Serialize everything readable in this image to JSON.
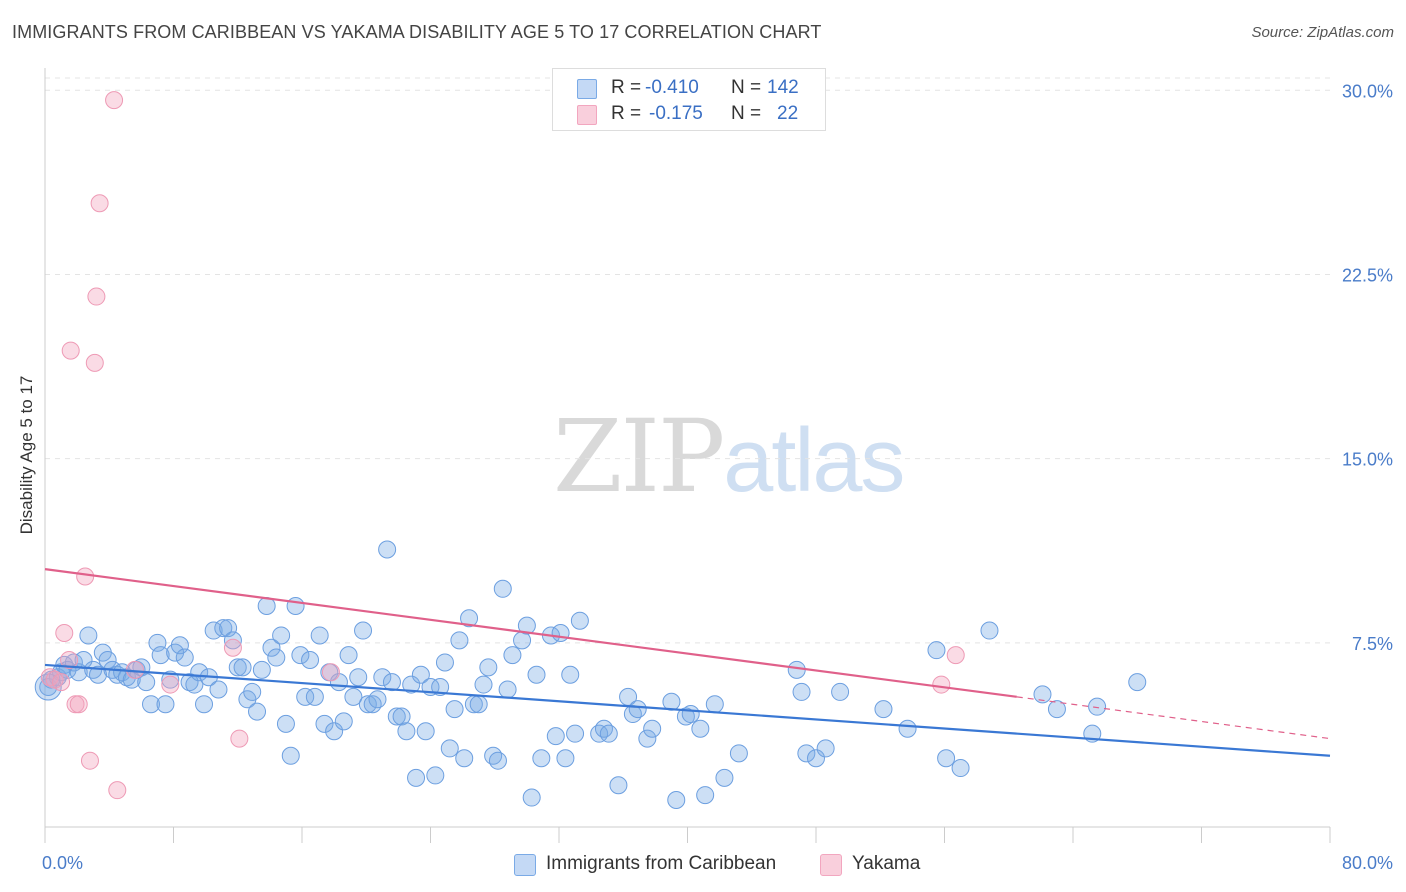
{
  "title": "IMMIGRANTS FROM CARIBBEAN VS YAKAMA DISABILITY AGE 5 TO 17 CORRELATION CHART",
  "source": "Source: ZipAtlas.com",
  "watermark": {
    "zip": "ZIP",
    "atlas": "atlas"
  },
  "colors": {
    "blue": "#7aaae6",
    "blue_line": "#3a78d4",
    "pink": "#f2a6bf",
    "pink_line": "#e0608a",
    "tick": "#4a7cc9"
  },
  "stats": [
    {
      "r_label": "R =",
      "r_value": "-0.410",
      "n_label": "N =",
      "n_value": "142"
    },
    {
      "r_label": "R =",
      "r_value": "-0.175",
      "n_label": "N =",
      "n_value": "22"
    }
  ],
  "chart_data": {
    "type": "scatter",
    "title": "IMMIGRANTS FROM CARIBBEAN VS YAKAMA DISABILITY AGE 5 TO 17 CORRELATION CHART",
    "xlabel": "",
    "ylabel": "Disability Age 5 to 17",
    "xlim": [
      0,
      80
    ],
    "ylim": [
      0,
      30.5
    ],
    "x_tick_labels": [
      "0.0%",
      "80.0%"
    ],
    "y_ticks": [
      7.5,
      15.0,
      22.5,
      30.0
    ],
    "y_tick_labels": [
      "7.5%",
      "15.0%",
      "22.5%",
      "30.0%"
    ],
    "grid": true,
    "legend": "bottom-center",
    "series": [
      {
        "name": "Immigrants from Caribbean",
        "color": "#7aaae6",
        "trend": {
          "x": [
            0,
            80
          ],
          "y": [
            6.6,
            2.9
          ]
        },
        "points": [
          [
            0.2,
            5.7
          ],
          [
            0.4,
            6.0
          ],
          [
            0.8,
            6.1
          ],
          [
            1.0,
            6.3
          ],
          [
            1.2,
            6.6
          ],
          [
            1.4,
            6.4
          ],
          [
            1.8,
            6.7
          ],
          [
            2.1,
            6.3
          ],
          [
            2.4,
            6.8
          ],
          [
            2.7,
            7.8
          ],
          [
            3.0,
            6.4
          ],
          [
            3.3,
            6.2
          ],
          [
            3.6,
            7.1
          ],
          [
            3.9,
            6.8
          ],
          [
            4.2,
            6.4
          ],
          [
            4.5,
            6.2
          ],
          [
            4.8,
            6.3
          ],
          [
            5.1,
            6.1
          ],
          [
            5.4,
            6.0
          ],
          [
            5.7,
            6.4
          ],
          [
            6.0,
            6.5
          ],
          [
            6.3,
            5.9
          ],
          [
            6.6,
            5.0
          ],
          [
            7.0,
            7.5
          ],
          [
            7.2,
            7.0
          ],
          [
            7.5,
            5.0
          ],
          [
            7.8,
            6.0
          ],
          [
            8.1,
            7.1
          ],
          [
            8.4,
            7.4
          ],
          [
            8.7,
            6.9
          ],
          [
            9.0,
            5.9
          ],
          [
            9.3,
            5.8
          ],
          [
            9.6,
            6.3
          ],
          [
            9.9,
            5.0
          ],
          [
            10.2,
            6.1
          ],
          [
            10.5,
            8.0
          ],
          [
            10.8,
            5.6
          ],
          [
            11.1,
            8.1
          ],
          [
            11.4,
            8.1
          ],
          [
            11.7,
            7.6
          ],
          [
            12.0,
            6.5
          ],
          [
            12.3,
            6.5
          ],
          [
            12.6,
            5.2
          ],
          [
            12.9,
            5.5
          ],
          [
            13.2,
            4.7
          ],
          [
            13.5,
            6.4
          ],
          [
            13.8,
            9.0
          ],
          [
            14.1,
            7.3
          ],
          [
            14.4,
            6.9
          ],
          [
            14.7,
            7.8
          ],
          [
            15.0,
            4.2
          ],
          [
            15.3,
            2.9
          ],
          [
            15.6,
            9.0
          ],
          [
            15.9,
            7.0
          ],
          [
            16.2,
            5.3
          ],
          [
            16.5,
            6.8
          ],
          [
            16.8,
            5.3
          ],
          [
            17.1,
            7.8
          ],
          [
            17.4,
            4.2
          ],
          [
            17.7,
            6.3
          ],
          [
            18.0,
            3.9
          ],
          [
            18.3,
            5.9
          ],
          [
            18.6,
            4.3
          ],
          [
            18.9,
            7.0
          ],
          [
            19.2,
            5.3
          ],
          [
            19.5,
            6.1
          ],
          [
            19.8,
            8.0
          ],
          [
            20.1,
            5.0
          ],
          [
            20.4,
            5.0
          ],
          [
            20.7,
            5.2
          ],
          [
            21.0,
            6.1
          ],
          [
            21.3,
            11.3
          ],
          [
            21.6,
            5.9
          ],
          [
            21.9,
            4.5
          ],
          [
            22.2,
            4.5
          ],
          [
            22.5,
            3.9
          ],
          [
            22.8,
            5.8
          ],
          [
            23.1,
            2.0
          ],
          [
            23.4,
            6.2
          ],
          [
            23.7,
            3.9
          ],
          [
            24.0,
            5.7
          ],
          [
            24.3,
            2.1
          ],
          [
            24.6,
            5.7
          ],
          [
            24.9,
            6.7
          ],
          [
            25.2,
            3.2
          ],
          [
            25.5,
            4.8
          ],
          [
            25.8,
            7.6
          ],
          [
            26.1,
            2.8
          ],
          [
            26.4,
            8.5
          ],
          [
            26.7,
            5.0
          ],
          [
            27.0,
            5.0
          ],
          [
            27.3,
            5.8
          ],
          [
            27.6,
            6.5
          ],
          [
            27.9,
            2.9
          ],
          [
            28.2,
            2.7
          ],
          [
            28.5,
            9.7
          ],
          [
            28.8,
            5.6
          ],
          [
            29.1,
            7.0
          ],
          [
            29.7,
            7.6
          ],
          [
            30.0,
            8.2
          ],
          [
            30.3,
            1.2
          ],
          [
            30.6,
            6.2
          ],
          [
            30.9,
            2.8
          ],
          [
            31.5,
            7.8
          ],
          [
            31.8,
            3.7
          ],
          [
            32.1,
            7.9
          ],
          [
            32.4,
            2.8
          ],
          [
            32.7,
            6.2
          ],
          [
            33.0,
            3.8
          ],
          [
            33.3,
            8.4
          ],
          [
            34.5,
            3.8
          ],
          [
            34.8,
            4.0
          ],
          [
            35.1,
            3.8
          ],
          [
            35.7,
            1.7
          ],
          [
            36.3,
            5.3
          ],
          [
            36.6,
            4.6
          ],
          [
            36.9,
            4.8
          ],
          [
            37.5,
            3.6
          ],
          [
            37.8,
            4.0
          ],
          [
            39.0,
            5.1
          ],
          [
            39.3,
            1.1
          ],
          [
            39.9,
            4.5
          ],
          [
            40.2,
            4.6
          ],
          [
            40.8,
            4.0
          ],
          [
            41.1,
            1.3
          ],
          [
            41.7,
            5.0
          ],
          [
            42.3,
            2.0
          ],
          [
            43.2,
            3.0
          ],
          [
            46.8,
            6.4
          ],
          [
            47.1,
            5.5
          ],
          [
            47.4,
            3.0
          ],
          [
            48.0,
            2.8
          ],
          [
            48.6,
            3.2
          ],
          [
            49.5,
            5.5
          ],
          [
            52.2,
            4.8
          ],
          [
            53.7,
            4.0
          ],
          [
            55.5,
            7.2
          ],
          [
            56.1,
            2.8
          ],
          [
            57.0,
            2.4
          ],
          [
            58.8,
            8.0
          ],
          [
            62.1,
            5.4
          ],
          [
            65.5,
            4.9
          ],
          [
            65.2,
            3.8
          ],
          [
            68.0,
            5.9
          ],
          [
            63.0,
            4.8
          ]
        ]
      },
      {
        "name": "Yakama",
        "color": "#f2a6bf",
        "trend": {
          "x": [
            0,
            60.5
          ],
          "y": [
            10.5,
            5.3
          ],
          "dashed_to": {
            "x": 80,
            "y": 3.6
          }
        },
        "points": [
          [
            0.3,
            6.1
          ],
          [
            0.6,
            6.0
          ],
          [
            1.0,
            5.9
          ],
          [
            1.2,
            7.9
          ],
          [
            1.5,
            6.8
          ],
          [
            1.6,
            19.4
          ],
          [
            1.9,
            5.0
          ],
          [
            2.1,
            5.0
          ],
          [
            2.5,
            10.2
          ],
          [
            2.8,
            2.7
          ],
          [
            3.1,
            18.9
          ],
          [
            3.2,
            21.6
          ],
          [
            3.4,
            25.4
          ],
          [
            4.3,
            29.6
          ],
          [
            4.5,
            1.5
          ],
          [
            5.6,
            6.4
          ],
          [
            7.8,
            5.8
          ],
          [
            11.7,
            7.3
          ],
          [
            12.1,
            3.6
          ],
          [
            17.8,
            6.3
          ],
          [
            55.8,
            5.8
          ],
          [
            56.7,
            7.0
          ]
        ]
      }
    ]
  },
  "legend_labels": [
    "Immigrants from Caribbean",
    "Yakama"
  ]
}
